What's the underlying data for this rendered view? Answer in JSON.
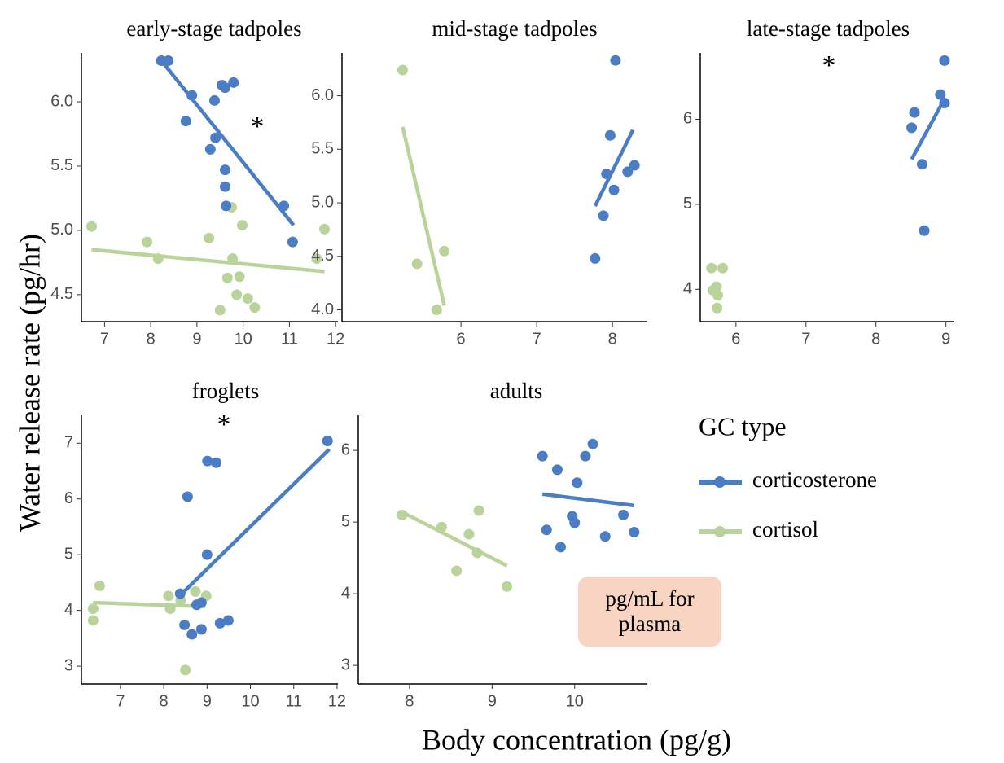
{
  "chart_data": [
    {
      "type": "scatter",
      "title": "early-stage tadpoles",
      "annotation": "*",
      "xlim": [
        6.5,
        12.05
      ],
      "xticks": [
        7,
        8,
        9,
        10,
        11,
        12
      ],
      "ylim": [
        4.29,
        6.38
      ],
      "yticks": [
        {
          "value": 4.5,
          "label": "4.5"
        },
        {
          "value": 5,
          "label": "5.0"
        },
        {
          "value": 5.5,
          "label": "5.5"
        },
        {
          "value": 6,
          "label": "6.0"
        }
      ],
      "series": [
        {
          "name": "corticosterone",
          "color": "#4a7dc4",
          "x": [
            8.23,
            8.38,
            8.89,
            8.76,
            9.38,
            9.54,
            9.61,
            9.79,
            9.4,
            9.29,
            9.61,
            9.61,
            9.63,
            10.88,
            11.07
          ],
          "values": [
            6.32,
            6.32,
            6.05,
            5.85,
            6.01,
            6.13,
            6.11,
            6.15,
            5.72,
            5.63,
            5.47,
            5.34,
            5.19,
            5.19,
            4.91
          ],
          "fit_x": [
            8.23,
            11.09
          ],
          "fit_y": [
            6.32,
            5.04
          ]
        },
        {
          "name": "cortisol",
          "color": "#b9d39b",
          "x": [
            6.72,
            7.92,
            8.16,
            9.26,
            9.75,
            9.98,
            9.77,
            9.66,
            9.92,
            9.86,
            10.1,
            10.25,
            9.5,
            11.76,
            11.59
          ],
          "values": [
            5.03,
            4.91,
            4.78,
            4.94,
            5.18,
            5.04,
            4.78,
            4.63,
            4.64,
            4.5,
            4.47,
            4.4,
            4.38,
            5.01,
            4.78
          ],
          "fit_x": [
            6.72,
            11.76
          ],
          "fit_y": [
            4.85,
            4.68
          ]
        }
      ]
    },
    {
      "type": "scatter",
      "title": "mid-stage tadpoles",
      "xlim": [
        4.43,
        8.46
      ],
      "xticks": [
        6,
        7,
        8
      ],
      "ylim": [
        3.89,
        6.4
      ],
      "yticks": [
        {
          "value": 4,
          "label": "4.0"
        },
        {
          "value": 4.5,
          "label": "4.5"
        },
        {
          "value": 5,
          "label": "5.0"
        },
        {
          "value": 5.5,
          "label": "5.5"
        },
        {
          "value": 6,
          "label": "6.0"
        }
      ],
      "series": [
        {
          "name": "corticosterone",
          "color": "#4a7dc4",
          "x": [
            8.04,
            7.97,
            7.92,
            8.02,
            7.88,
            8.2,
            8.29,
            7.77
          ],
          "values": [
            6.33,
            5.63,
            5.27,
            5.12,
            4.88,
            5.29,
            5.35,
            4.48
          ],
          "fit_x": [
            7.77,
            8.27
          ],
          "fit_y": [
            4.97,
            5.68
          ]
        },
        {
          "name": "cortisol",
          "color": "#b9d39b",
          "x": [
            5.23,
            5.42,
            5.78,
            5.68
          ],
          "values": [
            6.24,
            4.43,
            4.55,
            4.0
          ],
          "fit_x": [
            5.23,
            5.78
          ],
          "fit_y": [
            5.71,
            4.04
          ]
        }
      ]
    },
    {
      "type": "scatter",
      "title": "late-stage tadpoles",
      "annotation": "*",
      "xlim": [
        5.49,
        9.12
      ],
      "xticks": [
        6,
        7,
        8,
        9
      ],
      "ylim": [
        3.62,
        6.78
      ],
      "yticks": [
        4,
        5,
        6
      ],
      "series": [
        {
          "name": "corticosterone",
          "color": "#4a7dc4",
          "x": [
            8.98,
            8.92,
            8.98,
            8.55,
            8.51,
            8.66,
            8.69
          ],
          "values": [
            6.69,
            6.29,
            6.19,
            6.08,
            5.9,
            5.47,
            4.69
          ],
          "fit_x": [
            8.51,
            8.98
          ],
          "fit_y": [
            5.53,
            6.24
          ]
        },
        {
          "name": "cortisol",
          "color": "#b9d39b",
          "x": [
            5.65,
            5.81,
            5.67,
            5.74,
            5.73,
            5.72
          ],
          "values": [
            4.25,
            4.25,
            3.99,
            3.93,
            3.78,
            4.03
          ],
          "fit_x": [
            5.65,
            5.79
          ],
          "fit_y": [
            4.02,
            4.04
          ]
        }
      ]
    },
    {
      "type": "scatter",
      "title": "froglets",
      "annotation": "*",
      "xlim": [
        6.1,
        12.02
      ],
      "xticks": [
        7,
        8,
        9,
        10,
        11,
        12
      ],
      "ylim": [
        2.68,
        7.5
      ],
      "yticks": [
        3,
        4,
        5,
        6,
        7
      ],
      "series": [
        {
          "name": "corticosterone",
          "color": "#4a7dc4",
          "x": [
            11.78,
            9.01,
            9.21,
            8.55,
            9.0,
            8.38,
            8.76,
            8.87,
            8.48,
            8.65,
            8.87,
            9.3,
            9.49
          ],
          "values": [
            7.04,
            6.68,
            6.65,
            6.04,
            5.0,
            4.3,
            4.1,
            4.14,
            3.74,
            3.57,
            3.66,
            3.77,
            3.82
          ],
          "fit_x": [
            8.47,
            11.82
          ],
          "fit_y": [
            4.34,
            6.89
          ]
        },
        {
          "name": "cortisol",
          "color": "#b9d39b",
          "x": [
            6.37,
            6.52,
            6.37,
            8.11,
            8.15,
            8.39,
            8.73,
            8.98,
            8.5
          ],
          "values": [
            4.03,
            4.44,
            3.82,
            4.26,
            4.03,
            4.18,
            4.34,
            4.26,
            2.93
          ],
          "fit_x": [
            6.37,
            8.96
          ],
          "fit_y": [
            4.14,
            4.07
          ]
        }
      ]
    },
    {
      "type": "scatter",
      "title": "adults",
      "xlim": [
        7.38,
        10.88
      ],
      "xticks": [
        8,
        9,
        10
      ],
      "ylim": [
        2.74,
        6.49
      ],
      "yticks": [
        3,
        4,
        5,
        6
      ],
      "series": [
        {
          "name": "corticosterone",
          "color": "#4a7dc4",
          "x": [
            9.61,
            10.22,
            9.79,
            10.13,
            10.03,
            9.97,
            10.0,
            9.66,
            9.83,
            10.37,
            10.59,
            10.72
          ],
          "values": [
            5.92,
            6.09,
            5.73,
            5.92,
            5.55,
            5.08,
            4.99,
            4.89,
            4.65,
            4.8,
            5.1,
            4.86
          ],
          "fit_x": [
            9.61,
            10.72
          ],
          "fit_y": [
            5.39,
            5.23
          ]
        },
        {
          "name": "cortisol",
          "color": "#b9d39b",
          "x": [
            7.91,
            8.39,
            8.72,
            8.84,
            8.82,
            8.57,
            9.18
          ],
          "values": [
            5.1,
            4.93,
            4.83,
            5.16,
            4.57,
            4.32,
            4.1
          ],
          "fit_x": [
            7.91,
            9.18
          ],
          "fit_y": [
            5.14,
            4.39
          ]
        }
      ]
    }
  ],
  "y_label": "Water release rate (pg/hr)",
  "x_label": "Body concentration (pg/g)",
  "legend": {
    "title": "GC type",
    "position": "right"
  },
  "note": "pg/mL for plasma"
}
